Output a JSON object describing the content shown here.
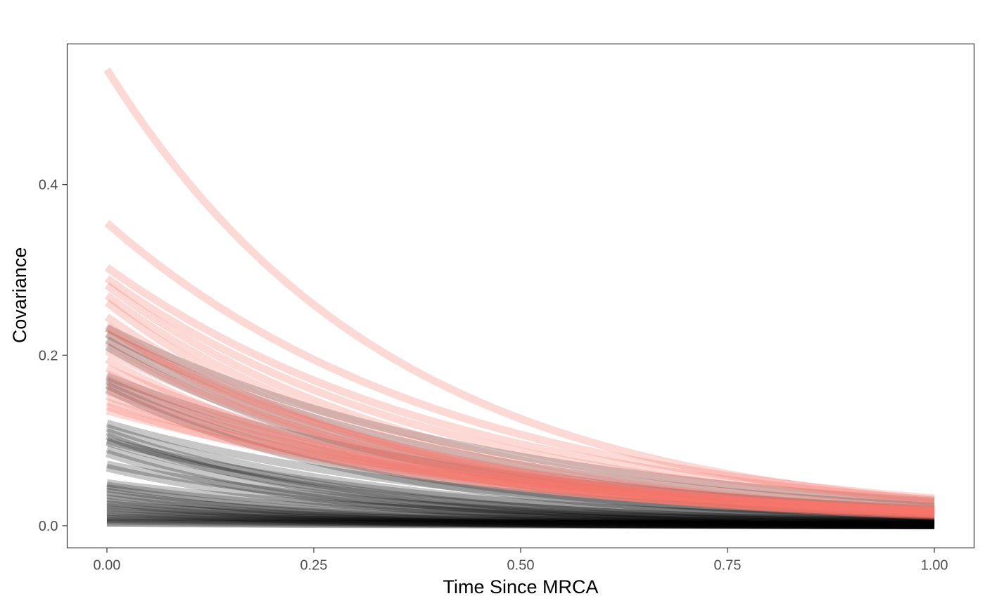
{
  "chart_data": {
    "type": "line",
    "title": "",
    "xlabel": "Time Since MRCA",
    "ylabel": "Covariance",
    "xlim": [
      -0.048,
      1.048
    ],
    "ylim": [
      -0.026,
      0.565
    ],
    "x_ticks": [
      0.0,
      0.25,
      0.5,
      0.75,
      1.0
    ],
    "x_tick_labels": [
      "0.00",
      "0.25",
      "0.50",
      "0.75",
      "1.00"
    ],
    "y_ticks": [
      0.0,
      0.2,
      0.4
    ],
    "y_tick_labels": [
      "0.0",
      "0.2",
      "0.4"
    ],
    "grid": false,
    "legend": "none",
    "curve_form": "covariance = intercept × exp(−decay × time), time from 0 to 1",
    "colors": {
      "red": "#F8766D",
      "black": "#000000",
      "red_opacity": 0.28,
      "black_opacity": 0.22
    },
    "series": [
      {
        "group": "red",
        "intercepts": [
          0.535,
          0.355,
          0.303,
          0.29,
          0.282,
          0.27,
          0.262,
          0.245,
          0.235,
          0.232,
          0.225,
          0.215,
          0.205,
          0.195,
          0.185,
          0.178,
          0.172,
          0.165,
          0.158,
          0.152,
          0.145,
          0.14,
          0.135
        ],
        "decays": [
          2.9,
          2.4,
          2.3,
          2.4,
          2.6,
          2.7,
          2.9,
          2.8,
          3.0,
          2.6,
          2.5,
          2.7,
          2.5,
          2.8,
          2.4,
          2.6,
          2.3,
          2.5,
          2.2,
          2.4,
          2.1,
          2.3,
          2.0
        ]
      },
      {
        "group": "black",
        "intercepts": [
          0.232,
          0.225,
          0.218,
          0.21,
          0.175,
          0.17,
          0.165,
          0.16,
          0.12,
          0.115,
          0.11,
          0.105,
          0.1,
          0.098,
          0.09,
          0.085,
          0.072,
          0.068,
          0.05,
          0.047,
          0.044,
          0.04,
          0.036,
          0.032,
          0.028,
          0.025,
          0.022,
          0.019,
          0.016,
          0.013,
          0.01,
          0.008,
          0.006,
          0.004,
          0.003
        ],
        "decays": [
          2.1,
          2.3,
          2.5,
          2.7,
          2.2,
          2.5,
          2.8,
          3.0,
          2.3,
          2.8,
          3.2,
          3.5,
          2.6,
          3.0,
          3.4,
          3.8,
          2.8,
          3.4,
          2.5,
          3.0,
          3.5,
          4.0,
          3.2,
          3.8,
          4.2,
          3.0,
          3.6,
          4.0,
          3.4,
          3.0,
          2.8,
          2.5,
          2.2,
          2.0,
          1.8
        ]
      }
    ]
  }
}
